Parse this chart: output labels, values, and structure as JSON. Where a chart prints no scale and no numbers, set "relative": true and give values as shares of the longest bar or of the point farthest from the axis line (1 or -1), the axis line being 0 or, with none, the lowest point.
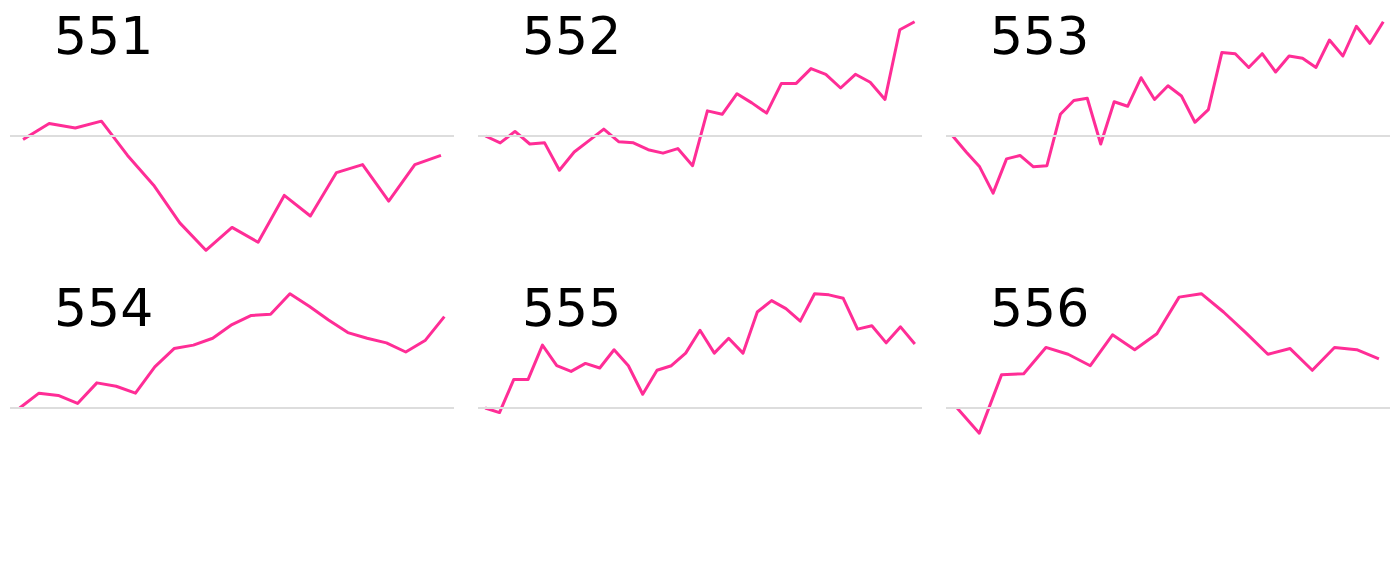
{
  "chart_data": [
    {
      "type": "line",
      "title": "551",
      "relative": true,
      "categories": [
        null,
        null,
        null,
        null,
        null,
        null,
        null,
        null,
        null,
        null,
        null,
        null,
        null,
        null,
        null,
        null,
        null
      ],
      "series": [
        {
          "color": "#ff2d96",
          "values": [
            -0.03,
            0.11,
            0.07,
            0.13,
            -0.17,
            -0.43,
            -0.76,
            -1,
            -0.8,
            -0.93,
            -0.52,
            -0.7,
            -0.32,
            -0.25,
            -0.57,
            -0.25,
            -0.17
          ]
        }
      ]
    },
    {
      "type": "line",
      "title": "552",
      "relative": true,
      "categories": [
        null,
        null,
        null,
        null,
        null,
        null,
        null,
        null,
        null,
        null,
        null,
        null,
        null,
        null,
        null,
        null,
        null,
        null,
        null,
        null,
        null,
        null,
        null,
        null,
        null,
        null,
        null,
        null,
        null,
        null
      ],
      "series": [
        {
          "color": "#ff2d96",
          "values": [
            0,
            -0.06,
            0.04,
            -0.07,
            -0.06,
            -0.3,
            -0.14,
            -0.04,
            0.06,
            -0.05,
            -0.06,
            -0.12,
            -0.15,
            -0.11,
            -0.26,
            0.22,
            0.19,
            0.37,
            0.29,
            0.2,
            0.46,
            0.46,
            0.59,
            0.54,
            0.42,
            0.54,
            0.47,
            0.32,
            0.93,
            1
          ]
        }
      ]
    },
    {
      "type": "line",
      "title": "553",
      "relative": true,
      "categories": [
        null,
        null,
        null,
        null,
        null,
        null,
        null,
        null,
        null,
        null,
        null,
        null,
        null,
        null,
        null,
        null,
        null,
        null,
        null,
        null,
        null,
        null,
        null,
        null,
        null,
        null,
        null,
        null,
        null,
        null,
        null,
        null,
        null
      ],
      "series": [
        {
          "color": "#ff2d96",
          "values": [
            0,
            -0.14,
            -0.27,
            -0.5,
            -0.2,
            -0.17,
            -0.27,
            -0.26,
            0.19,
            0.31,
            0.33,
            -0.07,
            0.3,
            0.26,
            0.51,
            0.32,
            0.44,
            0.35,
            0.12,
            0.23,
            0.73,
            0.72,
            0.6,
            0.72,
            0.56,
            0.7,
            0.68,
            0.6,
            0.84,
            0.7,
            0.96,
            0.81,
            1
          ]
        }
      ]
    },
    {
      "type": "line",
      "title": "554",
      "relative": true,
      "categories": [
        null,
        null,
        null,
        null,
        null,
        null,
        null,
        null,
        null,
        null,
        null,
        null,
        null,
        null,
        null,
        null,
        null,
        null,
        null,
        null,
        null,
        null,
        null
      ],
      "series": [
        {
          "color": "#ff2d96",
          "values": [
            0,
            0.13,
            0.11,
            0.04,
            0.22,
            0.19,
            0.13,
            0.36,
            0.52,
            0.55,
            0.61,
            0.73,
            0.81,
            0.82,
            1,
            0.89,
            0.77,
            0.66,
            0.61,
            0.57,
            0.49,
            0.59,
            0.8
          ]
        }
      ]
    },
    {
      "type": "line",
      "title": "555",
      "relative": true,
      "categories": [
        null,
        null,
        null,
        null,
        null,
        null,
        null,
        null,
        null,
        null,
        null,
        null,
        null,
        null,
        null,
        null,
        null,
        null,
        null,
        null,
        null,
        null,
        null,
        null,
        null,
        null,
        null,
        null,
        null,
        null,
        null
      ],
      "series": [
        {
          "color": "#ff2d96",
          "values": [
            0,
            -0.04,
            0.25,
            0.25,
            0.55,
            0.37,
            0.32,
            0.39,
            0.35,
            0.51,
            0.37,
            0.12,
            0.33,
            0.37,
            0.48,
            0.68,
            0.48,
            0.61,
            0.48,
            0.84,
            0.94,
            0.87,
            0.76,
            1,
            0.99,
            0.96,
            0.69,
            0.72,
            0.57,
            0.71,
            0.56
          ]
        }
      ]
    },
    {
      "type": "line",
      "title": "556",
      "relative": true,
      "categories": [
        null,
        null,
        null,
        null,
        null,
        null,
        null,
        null,
        null,
        null,
        null,
        null,
        null,
        null,
        null,
        null,
        null,
        null,
        null,
        null
      ],
      "series": [
        {
          "color": "#ff2d96",
          "values": [
            0,
            -0.22,
            0.29,
            0.3,
            0.53,
            0.47,
            0.37,
            0.64,
            0.51,
            0.65,
            0.97,
            1,
            0.84,
            0.66,
            0.47,
            0.52,
            0.33,
            0.53,
            0.51,
            0.43
          ]
        }
      ]
    }
  ]
}
